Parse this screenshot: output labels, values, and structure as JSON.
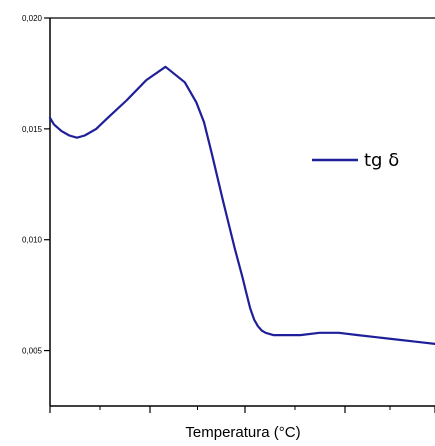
{
  "chart_data": {
    "type": "line",
    "title": "",
    "xlabel": "Temperatura (°C)",
    "ylabel": "",
    "ylim": [
      0.0025,
      0.02
    ],
    "xlim": [
      0,
      100
    ],
    "yticks": [
      {
        "value": 0.02,
        "label": "0,020"
      },
      {
        "value": 0.015,
        "label": "0,015"
      },
      {
        "value": 0.01,
        "label": "0,010"
      },
      {
        "value": 0.005,
        "label": "0,005"
      }
    ],
    "xticks": [
      0,
      25,
      50,
      75,
      100
    ],
    "legend": {
      "position": "right",
      "entries": [
        "tg δ"
      ]
    },
    "grid": false,
    "series": [
      {
        "name": "tg δ",
        "color": "#1f1f99",
        "x": [
          0,
          1,
          3,
          5,
          7,
          9,
          12,
          15,
          20,
          25,
          30,
          35,
          38,
          40,
          42,
          45,
          48,
          50,
          51,
          52,
          53,
          54,
          55,
          56,
          58,
          60,
          62,
          65,
          70,
          75,
          80,
          85,
          90,
          95,
          100
        ],
        "y": [
          0.0155,
          0.0152,
          0.0149,
          0.0147,
          0.0146,
          0.0147,
          0.015,
          0.0155,
          0.0163,
          0.0172,
          0.0178,
          0.0171,
          0.0162,
          0.0153,
          0.0139,
          0.0117,
          0.0096,
          0.0083,
          0.0076,
          0.0069,
          0.0064,
          0.0061,
          0.0059,
          0.0058,
          0.0057,
          0.0057,
          0.0057,
          0.0057,
          0.0058,
          0.0058,
          0.0057,
          0.0056,
          0.0055,
          0.0054,
          0.0053
        ]
      }
    ]
  }
}
